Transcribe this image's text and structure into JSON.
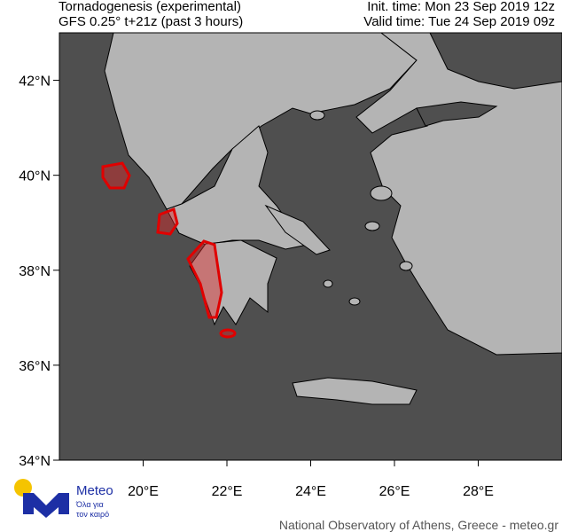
{
  "header": {
    "title": "Tornadogenesis (experimental)",
    "subtitle": "GFS 0.25° t+21z (past 3 hours)",
    "init_time": "Init. time: Mon 23 Sep 2019 12z",
    "valid_time": "Valid time: Tue 24 Sep 2019 09z"
  },
  "map": {
    "lon_range": [
      18,
      30
    ],
    "lat_range": [
      34,
      43
    ],
    "lat_ticks": [
      {
        "value": 34,
        "label": "34°N"
      },
      {
        "value": 36,
        "label": "36°N"
      },
      {
        "value": 38,
        "label": "38°N"
      },
      {
        "value": 40,
        "label": "40°N"
      },
      {
        "value": 42,
        "label": "42°N"
      }
    ],
    "lon_ticks": [
      {
        "value": 20,
        "label": "20°E"
      },
      {
        "value": 22,
        "label": "22°E"
      },
      {
        "value": 24,
        "label": "24°E"
      },
      {
        "value": 26,
        "label": "26°E"
      },
      {
        "value": 28,
        "label": "28°E"
      }
    ]
  },
  "logo": {
    "name": "Meteo",
    "tagline_1": "Όλα για",
    "tagline_2": "τον καιρό"
  },
  "footer": "National Observatory of Athens, Greece - meteo.gr"
}
